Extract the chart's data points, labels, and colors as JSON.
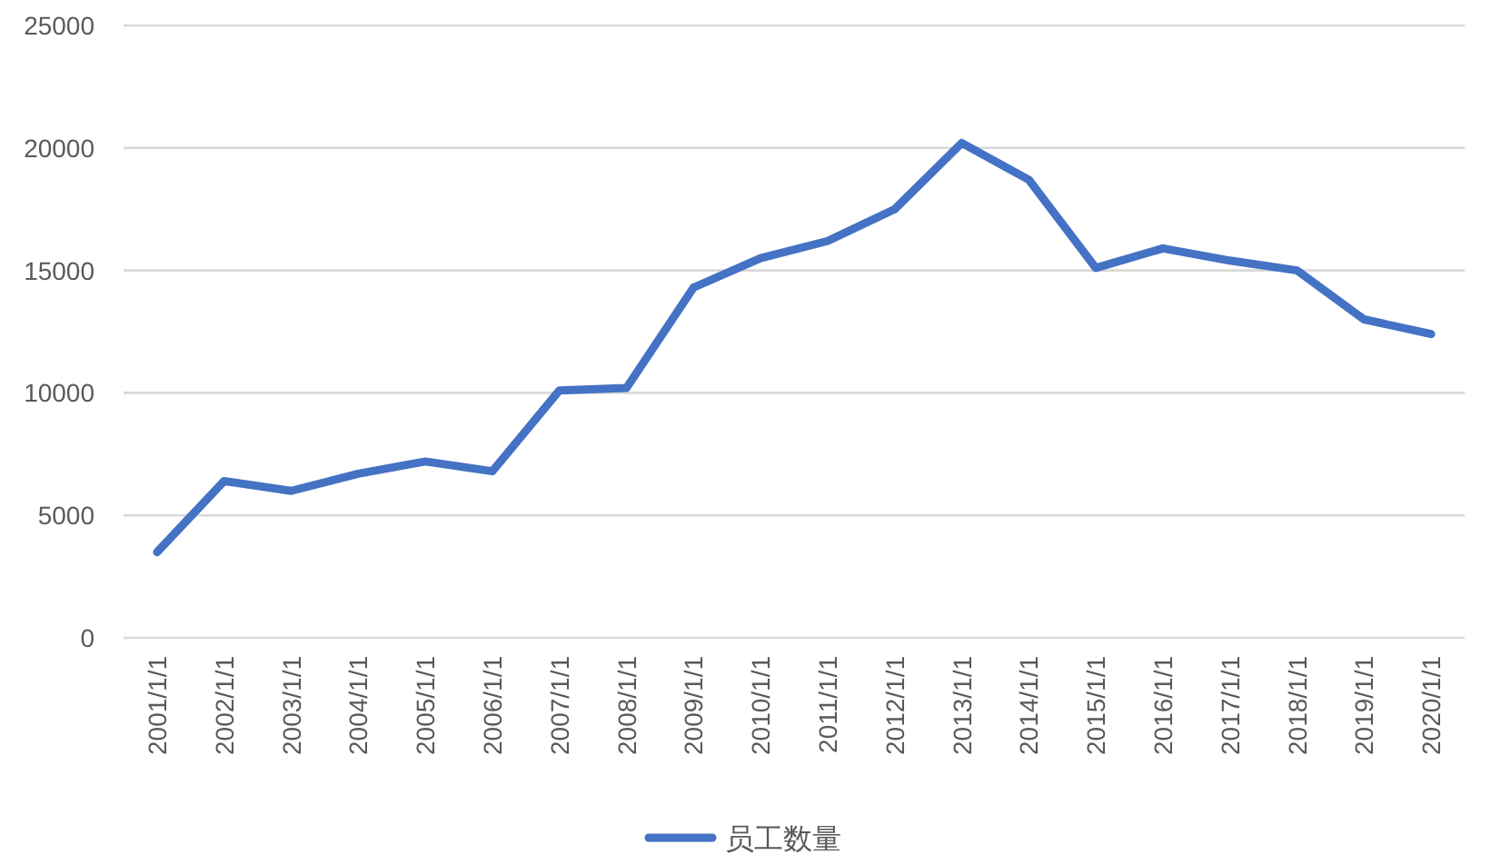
{
  "chart_data": {
    "type": "line",
    "categories": [
      "2001/1/1",
      "2002/1/1",
      "2003/1/1",
      "2004/1/1",
      "2005/1/1",
      "2006/1/1",
      "2007/1/1",
      "2008/1/1",
      "2009/1/1",
      "2010/1/1",
      "2011/1/1",
      "2012/1/1",
      "2013/1/1",
      "2014/1/1",
      "2015/1/1",
      "2016/1/1",
      "2017/1/1",
      "2018/1/1",
      "2019/1/1",
      "2020/1/1"
    ],
    "series": [
      {
        "name": "员工数量",
        "color": "#4472c4",
        "values": [
          3500,
          6400,
          6000,
          6700,
          7200,
          6800,
          10100,
          10200,
          14300,
          15500,
          16200,
          17500,
          20200,
          18700,
          15100,
          15900,
          15400,
          15000,
          13000,
          12400
        ]
      }
    ],
    "ylim": [
      0,
      25000
    ],
    "yticks": [
      0,
      5000,
      10000,
      15000,
      20000,
      25000
    ],
    "grid": "y",
    "legend": "bottom"
  }
}
